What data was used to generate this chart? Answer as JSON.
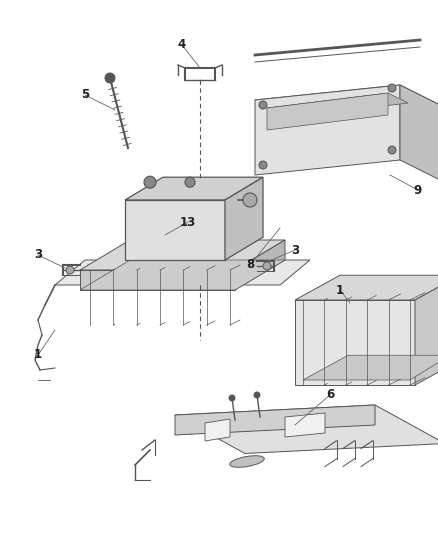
{
  "bg_color": "#ffffff",
  "line_color": "#888888",
  "dark_line": "#555555",
  "figsize": [
    4.38,
    5.33
  ],
  "dpi": 100,
  "label_fontsize": 8.5
}
